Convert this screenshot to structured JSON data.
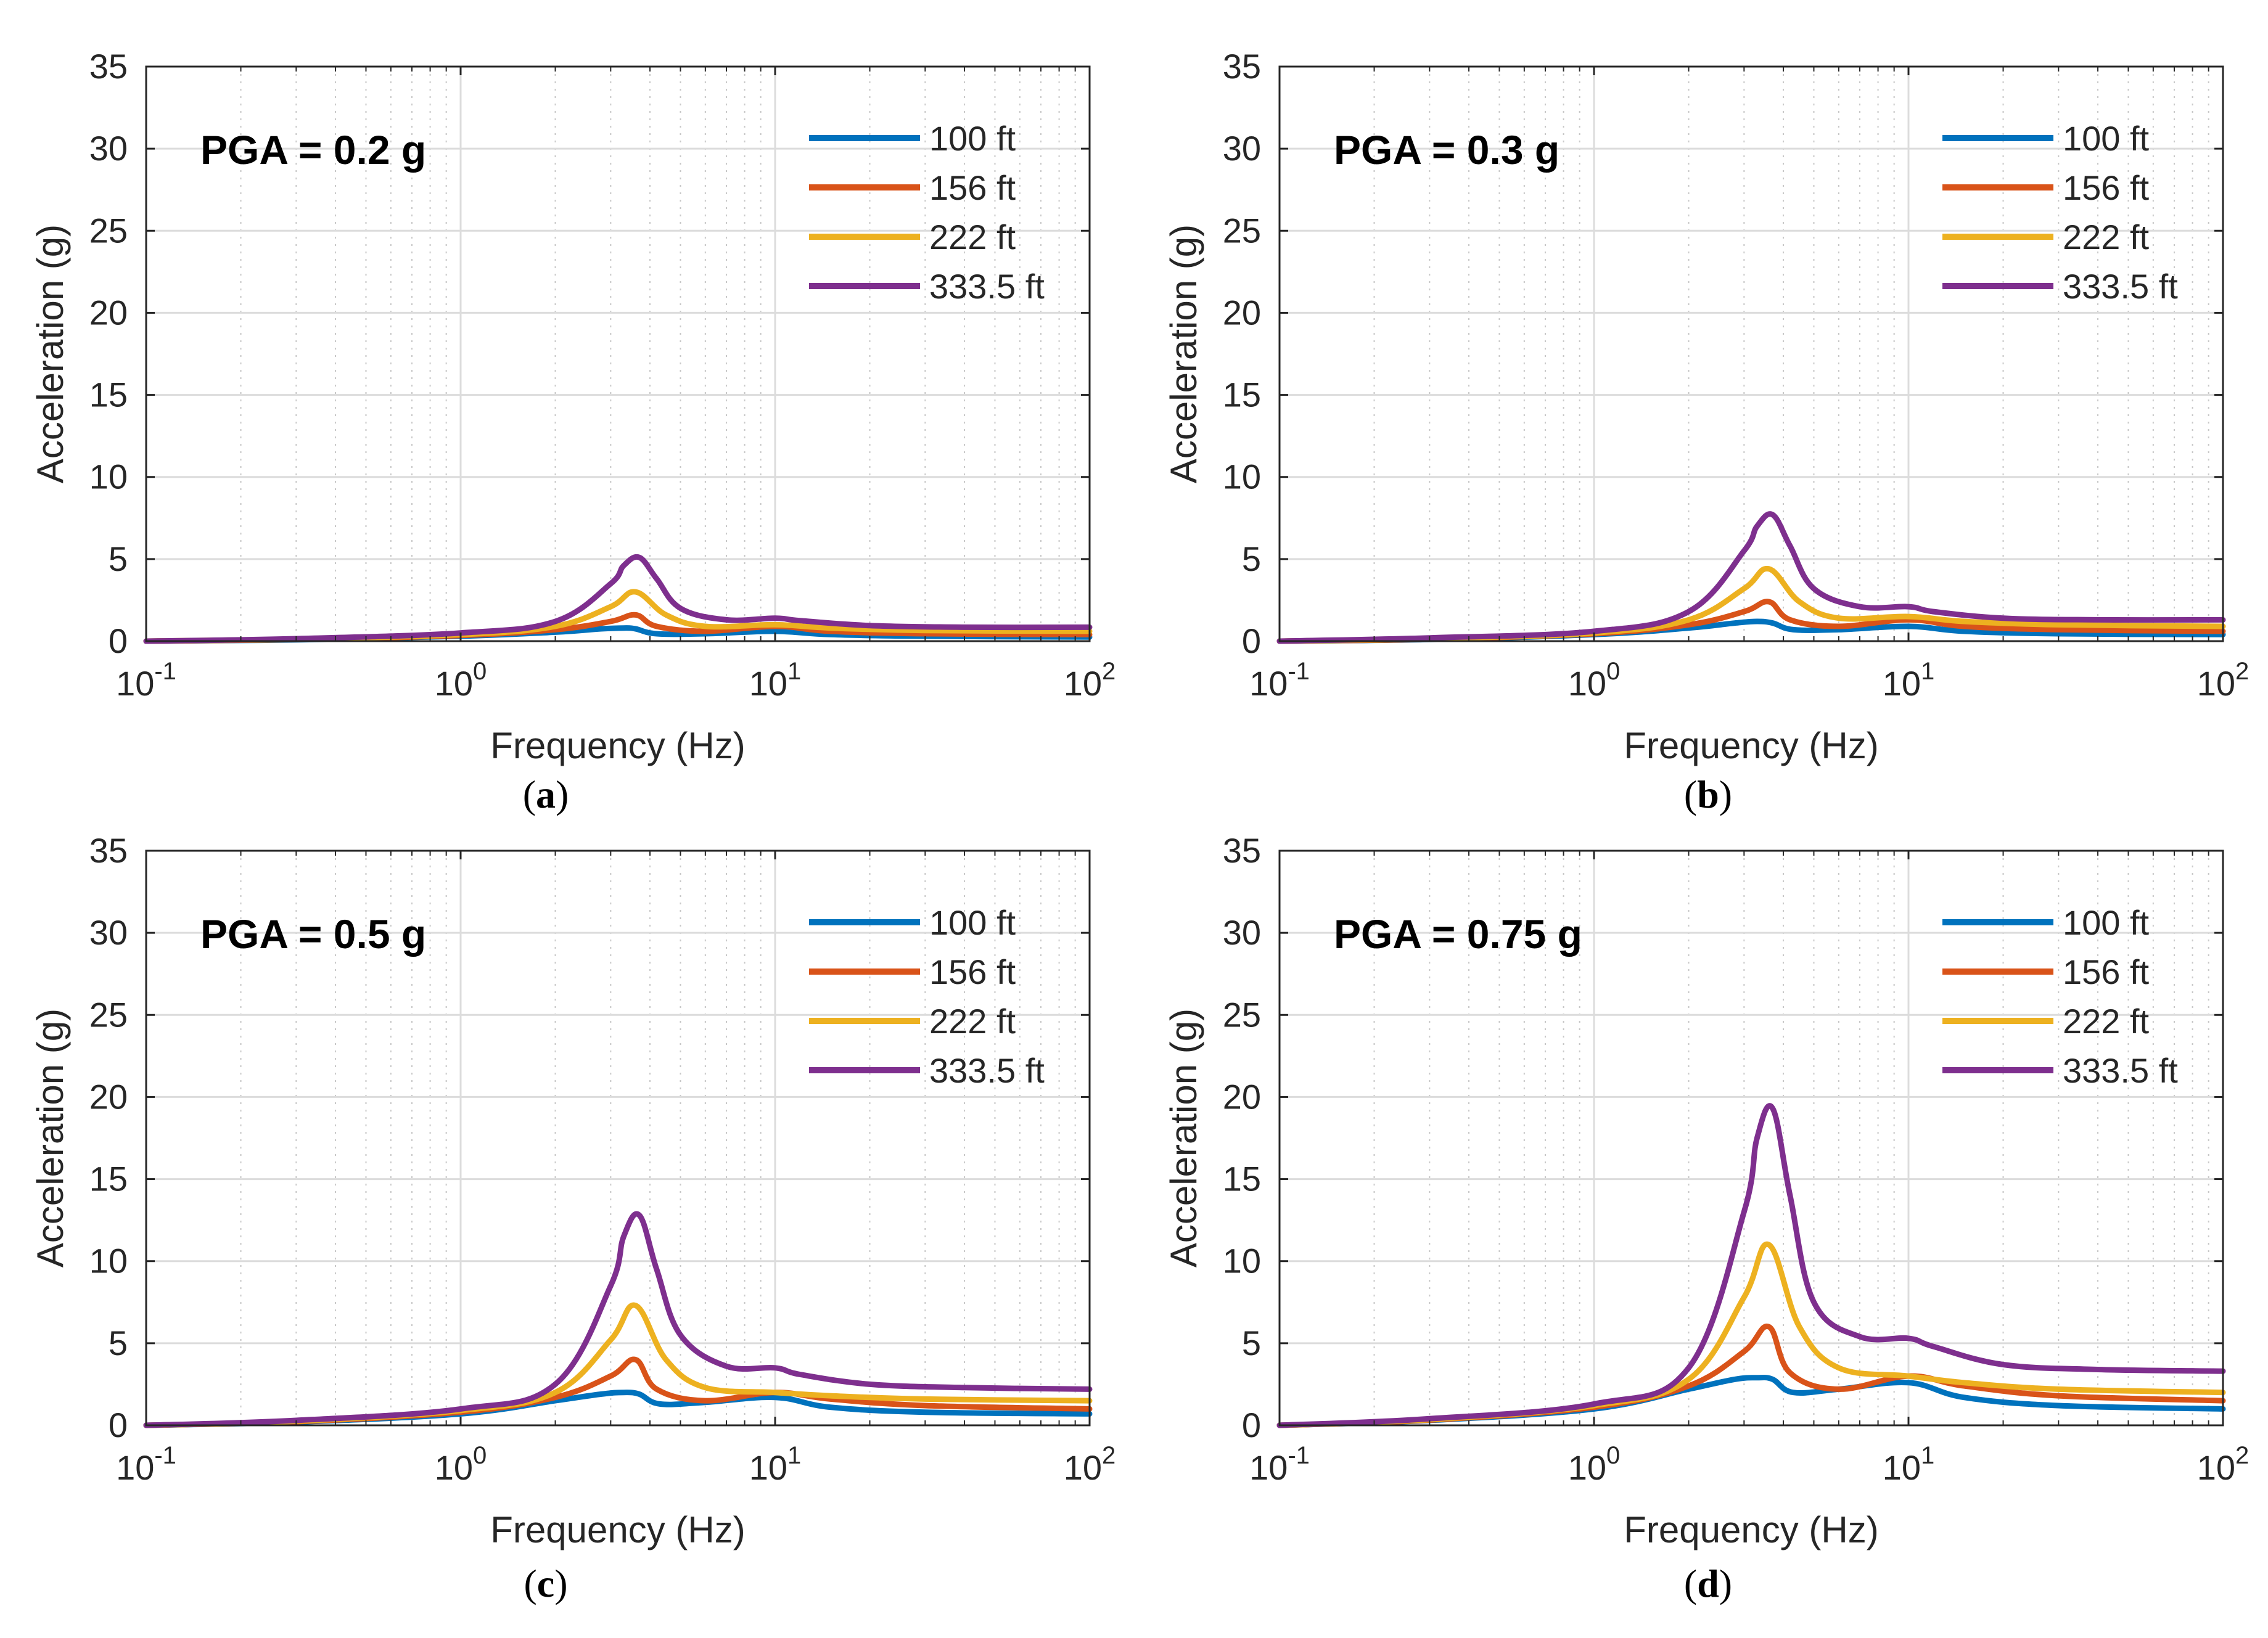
{
  "chart_data": [
    {
      "type": "line",
      "panel_label": [
        "(",
        "a",
        ")"
      ],
      "annotation": "PGA = 0.2 g",
      "xlabel": "Frequency (Hz)",
      "ylabel": "Acceleration (g)",
      "xscale": "log",
      "xlim": [
        0.1,
        100
      ],
      "ylim": [
        0,
        35
      ],
      "yticks": [
        "0",
        "5",
        "10",
        "15",
        "20",
        "25",
        "30",
        "35"
      ],
      "xticks": [
        {
          "base": "10",
          "exp": "-1"
        },
        {
          "base": "10",
          "exp": "0"
        },
        {
          "base": "10",
          "exp": "1"
        },
        {
          "base": "10",
          "exp": "2"
        }
      ],
      "grid": true,
      "legend_position": "top-right",
      "series": [
        {
          "name": "100 ft",
          "color": "#0072bd",
          "x": [
            0.1,
            0.3,
            1,
            2,
            2.8,
            3.3,
            3.6,
            4.2,
            6,
            10,
            15,
            30,
            100
          ],
          "y": [
            0,
            0.08,
            0.3,
            0.55,
            0.75,
            0.8,
            0.75,
            0.45,
            0.45,
            0.6,
            0.4,
            0.3,
            0.25
          ]
        },
        {
          "name": "156 ft",
          "color": "#d95319",
          "x": [
            0.1,
            0.3,
            1,
            2,
            3,
            3.6,
            4.2,
            6,
            10,
            15,
            30,
            100
          ],
          "y": [
            0,
            0.1,
            0.35,
            0.7,
            1.2,
            1.6,
            0.9,
            0.6,
            0.9,
            0.6,
            0.45,
            0.4
          ]
        },
        {
          "name": "222 ft",
          "color": "#edb120",
          "x": [
            0.1,
            0.3,
            1,
            2,
            3,
            3.6,
            4.5,
            6,
            10,
            15,
            30,
            100
          ],
          "y": [
            0,
            0.12,
            0.4,
            0.9,
            2.1,
            3.0,
            1.6,
            0.9,
            1.0,
            0.8,
            0.65,
            0.6
          ]
        },
        {
          "name": "333.5 ft",
          "color": "#7e2f8e",
          "x": [
            0.1,
            0.3,
            1,
            2,
            3,
            3.3,
            3.7,
            4.2,
            5,
            7,
            10,
            12,
            20,
            40,
            100
          ],
          "y": [
            0,
            0.15,
            0.5,
            1.2,
            3.5,
            4.6,
            5.1,
            3.8,
            2.0,
            1.3,
            1.4,
            1.25,
            0.95,
            0.85,
            0.85
          ]
        }
      ]
    },
    {
      "type": "line",
      "panel_label": [
        "(",
        "b",
        ")"
      ],
      "annotation": "PGA = 0.3 g",
      "xlabel": "Frequency (Hz)",
      "ylabel": "Acceleration (g)",
      "xscale": "log",
      "xlim": [
        0.1,
        100
      ],
      "ylim": [
        0,
        35
      ],
      "yticks": [
        "0",
        "5",
        "10",
        "15",
        "20",
        "25",
        "30",
        "35"
      ],
      "xticks": [
        {
          "base": "10",
          "exp": "-1"
        },
        {
          "base": "10",
          "exp": "0"
        },
        {
          "base": "10",
          "exp": "1"
        },
        {
          "base": "10",
          "exp": "2"
        }
      ],
      "grid": true,
      "legend_position": "top-right",
      "series": [
        {
          "name": "100 ft",
          "color": "#0072bd",
          "x": [
            0.1,
            0.3,
            1,
            2,
            2.8,
            3.3,
            3.7,
            4.3,
            6,
            10,
            15,
            30,
            100
          ],
          "y": [
            0,
            0.1,
            0.4,
            0.8,
            1.1,
            1.2,
            1.1,
            0.7,
            0.7,
            0.9,
            0.6,
            0.45,
            0.4
          ]
        },
        {
          "name": "156 ft",
          "color": "#d95319",
          "x": [
            0.1,
            0.3,
            1,
            2,
            3,
            3.6,
            4.2,
            6,
            10,
            15,
            30,
            100
          ],
          "y": [
            0,
            0.12,
            0.45,
            1.0,
            1.8,
            2.4,
            1.3,
            0.9,
            1.3,
            0.9,
            0.7,
            0.6
          ]
        },
        {
          "name": "222 ft",
          "color": "#edb120",
          "x": [
            0.1,
            0.3,
            1,
            2,
            3,
            3.6,
            4.5,
            6,
            10,
            15,
            30,
            100
          ],
          "y": [
            0,
            0.15,
            0.5,
            1.3,
            3.2,
            4.4,
            2.4,
            1.4,
            1.5,
            1.2,
            1.0,
            0.9
          ]
        },
        {
          "name": "333.5 ft",
          "color": "#7e2f8e",
          "x": [
            0.1,
            0.3,
            1,
            2,
            3,
            3.3,
            3.7,
            4.2,
            5,
            7,
            10,
            12,
            20,
            40,
            100
          ],
          "y": [
            0,
            0.2,
            0.6,
            1.8,
            5.5,
            7.0,
            7.7,
            5.8,
            3.2,
            2.1,
            2.1,
            1.8,
            1.4,
            1.3,
            1.3
          ]
        }
      ]
    },
    {
      "type": "line",
      "panel_label": [
        "(",
        "c",
        ")"
      ],
      "annotation": "PGA = 0.5 g",
      "xlabel": "Frequency (Hz)",
      "ylabel": "Acceleration (g)",
      "xscale": "log",
      "xlim": [
        0.1,
        100
      ],
      "ylim": [
        0,
        35
      ],
      "yticks": [
        "0",
        "5",
        "10",
        "15",
        "20",
        "25",
        "30",
        "35"
      ],
      "xticks": [
        {
          "base": "10",
          "exp": "-1"
        },
        {
          "base": "10",
          "exp": "0"
        },
        {
          "base": "10",
          "exp": "1"
        },
        {
          "base": "10",
          "exp": "2"
        }
      ],
      "grid": true,
      "legend_position": "top-right",
      "series": [
        {
          "name": "100 ft",
          "color": "#0072bd",
          "x": [
            0.1,
            0.3,
            1,
            2,
            2.8,
            3.3,
            3.7,
            4.3,
            6,
            10,
            15,
            30,
            100
          ],
          "y": [
            0,
            0.2,
            0.7,
            1.5,
            1.9,
            2.0,
            1.9,
            1.3,
            1.4,
            1.7,
            1.1,
            0.8,
            0.7
          ]
        },
        {
          "name": "156 ft",
          "color": "#d95319",
          "x": [
            0.1,
            0.3,
            1,
            2,
            3,
            3.6,
            4.2,
            6,
            10,
            15,
            30,
            100
          ],
          "y": [
            0,
            0.22,
            0.8,
            1.7,
            3.0,
            4.0,
            2.2,
            1.5,
            2.0,
            1.6,
            1.2,
            1.0
          ]
        },
        {
          "name": "222 ft",
          "color": "#edb120",
          "x": [
            0.1,
            0.3,
            1,
            2,
            3,
            3.6,
            4.5,
            6,
            10,
            15,
            30,
            100
          ],
          "y": [
            0,
            0.25,
            0.9,
            2.0,
            5.2,
            7.3,
            4.0,
            2.3,
            2.0,
            1.8,
            1.6,
            1.5
          ]
        },
        {
          "name": "333.5 ft",
          "color": "#7e2f8e",
          "x": [
            0.1,
            0.3,
            1,
            2,
            3,
            3.3,
            3.7,
            4.2,
            5,
            7,
            10,
            12,
            20,
            40,
            100
          ],
          "y": [
            0,
            0.3,
            1.0,
            2.5,
            8.5,
            11.5,
            12.8,
            9.5,
            5.5,
            3.6,
            3.5,
            3.1,
            2.5,
            2.3,
            2.2
          ]
        }
      ]
    },
    {
      "type": "line",
      "panel_label": [
        "(",
        "d",
        ")"
      ],
      "annotation": "PGA = 0.75 g",
      "xlabel": "Frequency (Hz)",
      "ylabel": "Acceleration (g)",
      "xscale": "log",
      "xlim": [
        0.1,
        100
      ],
      "ylim": [
        0,
        35
      ],
      "yticks": [
        "0",
        "5",
        "10",
        "15",
        "20",
        "25",
        "30",
        "35"
      ],
      "xticks": [
        {
          "base": "10",
          "exp": "-1"
        },
        {
          "base": "10",
          "exp": "0"
        },
        {
          "base": "10",
          "exp": "1"
        },
        {
          "base": "10",
          "exp": "2"
        }
      ],
      "grid": true,
      "legend_position": "top-right",
      "series": [
        {
          "name": "100 ft",
          "color": "#0072bd",
          "x": [
            0.1,
            0.3,
            1,
            2,
            2.8,
            3.3,
            3.7,
            4.3,
            6,
            10,
            15,
            30,
            100
          ],
          "y": [
            0,
            0.3,
            1.0,
            2.2,
            2.8,
            2.9,
            2.8,
            2.0,
            2.2,
            2.6,
            1.7,
            1.2,
            1.0
          ]
        },
        {
          "name": "156 ft",
          "color": "#d95319",
          "x": [
            0.1,
            0.3,
            1,
            2,
            3,
            3.6,
            4.2,
            6,
            10,
            15,
            30,
            100
          ],
          "y": [
            0,
            0.32,
            1.1,
            2.4,
            4.5,
            6.0,
            3.2,
            2.2,
            3.0,
            2.4,
            1.8,
            1.5
          ]
        },
        {
          "name": "222 ft",
          "color": "#edb120",
          "x": [
            0.1,
            0.3,
            1,
            2,
            3,
            3.6,
            4.5,
            6,
            10,
            15,
            30,
            100
          ],
          "y": [
            0,
            0.35,
            1.2,
            2.8,
            7.8,
            11.0,
            6.0,
            3.5,
            3.0,
            2.6,
            2.2,
            2.0
          ]
        },
        {
          "name": "333.5 ft",
          "color": "#7e2f8e",
          "x": [
            0.1,
            0.3,
            1,
            2,
            3,
            3.3,
            3.7,
            4.2,
            5,
            7,
            10,
            12,
            20,
            40,
            100
          ],
          "y": [
            0,
            0.4,
            1.3,
            3.5,
            13.0,
            17.5,
            19.3,
            14.0,
            7.5,
            5.4,
            5.3,
            4.8,
            3.7,
            3.4,
            3.3
          ]
        }
      ]
    }
  ]
}
